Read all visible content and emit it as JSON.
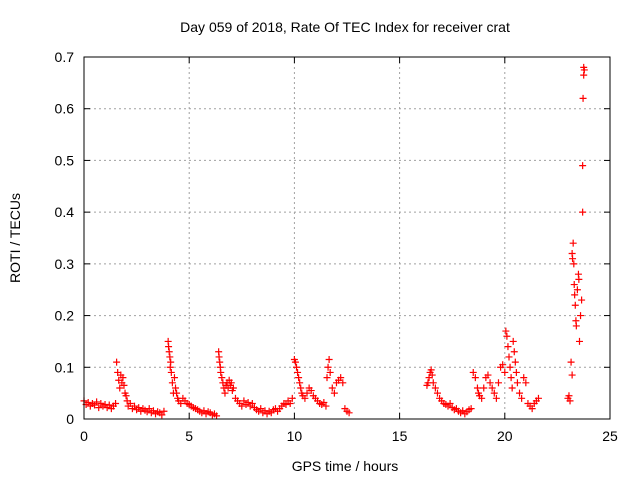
{
  "chart_data": {
    "type": "scatter",
    "title": "Day 059 of 2018, Rate Of TEC Index for receiver crat",
    "xlabel": "GPS time / hours",
    "ylabel": "ROTI / TECUs",
    "xlim": [
      0,
      25
    ],
    "ylim": [
      0,
      0.7
    ],
    "x_ticks": [
      0,
      5,
      10,
      15,
      20,
      25
    ],
    "y_ticks": [
      0,
      0.1,
      0.2,
      0.3,
      0.4,
      0.5,
      0.6,
      0.7
    ],
    "x_tick_labels": [
      "0",
      "5",
      "10",
      "15",
      "20",
      "25"
    ],
    "y_tick_labels": [
      "0",
      "0.1",
      "0.2",
      "0.3",
      "0.4",
      "0.5",
      "0.6",
      "0.7"
    ],
    "grid": true,
    "marker": "+",
    "color": "#ff0000",
    "series": [
      {
        "name": "ROTI",
        "points": [
          [
            0.0,
            0.035
          ],
          [
            0.1,
            0.028
          ],
          [
            0.2,
            0.032
          ],
          [
            0.3,
            0.025
          ],
          [
            0.4,
            0.03
          ],
          [
            0.5,
            0.027
          ],
          [
            0.6,
            0.033
          ],
          [
            0.7,
            0.022
          ],
          [
            0.8,
            0.03
          ],
          [
            0.9,
            0.025
          ],
          [
            1.0,
            0.028
          ],
          [
            1.1,
            0.022
          ],
          [
            1.2,
            0.027
          ],
          [
            1.3,
            0.02
          ],
          [
            1.4,
            0.025
          ],
          [
            1.5,
            0.03
          ],
          [
            1.55,
            0.11
          ],
          [
            1.6,
            0.09
          ],
          [
            1.65,
            0.075
          ],
          [
            1.7,
            0.06
          ],
          [
            1.75,
            0.085
          ],
          [
            1.8,
            0.07
          ],
          [
            1.85,
            0.08
          ],
          [
            1.9,
            0.065
          ],
          [
            1.95,
            0.05
          ],
          [
            2.0,
            0.045
          ],
          [
            2.05,
            0.035
          ],
          [
            2.1,
            0.025
          ],
          [
            2.2,
            0.03
          ],
          [
            2.3,
            0.02
          ],
          [
            2.4,
            0.025
          ],
          [
            2.5,
            0.018
          ],
          [
            2.6,
            0.022
          ],
          [
            2.7,
            0.015
          ],
          [
            2.8,
            0.02
          ],
          [
            2.9,
            0.017
          ],
          [
            3.0,
            0.014
          ],
          [
            3.1,
            0.02
          ],
          [
            3.2,
            0.012
          ],
          [
            3.3,
            0.016
          ],
          [
            3.4,
            0.01
          ],
          [
            3.5,
            0.014
          ],
          [
            3.6,
            0.012
          ],
          [
            3.7,
            0.008
          ],
          [
            3.8,
            0.015
          ],
          [
            4.0,
            0.15
          ],
          [
            4.02,
            0.14
          ],
          [
            4.05,
            0.13
          ],
          [
            4.08,
            0.12
          ],
          [
            4.1,
            0.1
          ],
          [
            4.12,
            0.11
          ],
          [
            4.15,
            0.09
          ],
          [
            4.2,
            0.07
          ],
          [
            4.25,
            0.05
          ],
          [
            4.3,
            0.08
          ],
          [
            4.35,
            0.06
          ],
          [
            4.4,
            0.05
          ],
          [
            4.45,
            0.04
          ],
          [
            4.5,
            0.035
          ],
          [
            4.6,
            0.03
          ],
          [
            4.7,
            0.04
          ],
          [
            4.8,
            0.035
          ],
          [
            4.9,
            0.03
          ],
          [
            5.0,
            0.028
          ],
          [
            5.1,
            0.025
          ],
          [
            5.2,
            0.022
          ],
          [
            5.3,
            0.02
          ],
          [
            5.4,
            0.018
          ],
          [
            5.5,
            0.015
          ],
          [
            5.6,
            0.012
          ],
          [
            5.7,
            0.016
          ],
          [
            5.8,
            0.01
          ],
          [
            5.9,
            0.014
          ],
          [
            6.0,
            0.012
          ],
          [
            6.1,
            0.008
          ],
          [
            6.2,
            0.01
          ],
          [
            6.3,
            0.006
          ],
          [
            6.4,
            0.13
          ],
          [
            6.42,
            0.12
          ],
          [
            6.45,
            0.11
          ],
          [
            6.48,
            0.1
          ],
          [
            6.5,
            0.09
          ],
          [
            6.55,
            0.08
          ],
          [
            6.6,
            0.07
          ],
          [
            6.65,
            0.06
          ],
          [
            6.7,
            0.05
          ],
          [
            6.75,
            0.065
          ],
          [
            6.8,
            0.07
          ],
          [
            6.85,
            0.06
          ],
          [
            6.9,
            0.075
          ],
          [
            6.95,
            0.065
          ],
          [
            7.0,
            0.07
          ],
          [
            7.05,
            0.055
          ],
          [
            7.1,
            0.06
          ],
          [
            7.2,
            0.04
          ],
          [
            7.3,
            0.035
          ],
          [
            7.4,
            0.03
          ],
          [
            7.5,
            0.025
          ],
          [
            7.6,
            0.035
          ],
          [
            7.7,
            0.028
          ],
          [
            7.8,
            0.032
          ],
          [
            7.9,
            0.025
          ],
          [
            8.0,
            0.03
          ],
          [
            8.1,
            0.022
          ],
          [
            8.2,
            0.018
          ],
          [
            8.3,
            0.015
          ],
          [
            8.4,
            0.02
          ],
          [
            8.5,
            0.012
          ],
          [
            8.6,
            0.016
          ],
          [
            8.7,
            0.01
          ],
          [
            8.8,
            0.015
          ],
          [
            8.9,
            0.012
          ],
          [
            9.0,
            0.018
          ],
          [
            9.1,
            0.02
          ],
          [
            9.2,
            0.015
          ],
          [
            9.3,
            0.02
          ],
          [
            9.4,
            0.025
          ],
          [
            9.5,
            0.03
          ],
          [
            9.6,
            0.028
          ],
          [
            9.7,
            0.035
          ],
          [
            9.8,
            0.03
          ],
          [
            9.9,
            0.04
          ],
          [
            10.0,
            0.115
          ],
          [
            10.05,
            0.11
          ],
          [
            10.1,
            0.1
          ],
          [
            10.15,
            0.09
          ],
          [
            10.2,
            0.08
          ],
          [
            10.25,
            0.07
          ],
          [
            10.3,
            0.06
          ],
          [
            10.35,
            0.05
          ],
          [
            10.4,
            0.045
          ],
          [
            10.5,
            0.04
          ],
          [
            10.6,
            0.05
          ],
          [
            10.7,
            0.06
          ],
          [
            10.8,
            0.055
          ],
          [
            10.9,
            0.045
          ],
          [
            11.0,
            0.04
          ],
          [
            11.1,
            0.035
          ],
          [
            11.2,
            0.03
          ],
          [
            11.3,
            0.028
          ],
          [
            11.4,
            0.032
          ],
          [
            11.5,
            0.025
          ],
          [
            11.55,
            0.08
          ],
          [
            11.6,
            0.1
          ],
          [
            11.65,
            0.115
          ],
          [
            11.7,
            0.09
          ],
          [
            11.8,
            0.06
          ],
          [
            11.9,
            0.05
          ],
          [
            12.0,
            0.07
          ],
          [
            12.1,
            0.075
          ],
          [
            12.2,
            0.08
          ],
          [
            12.3,
            0.07
          ],
          [
            12.4,
            0.02
          ],
          [
            12.5,
            0.015
          ],
          [
            12.6,
            0.012
          ],
          [
            16.3,
            0.065
          ],
          [
            16.35,
            0.07
          ],
          [
            16.4,
            0.08
          ],
          [
            16.45,
            0.09
          ],
          [
            16.5,
            0.095
          ],
          [
            16.55,
            0.085
          ],
          [
            16.6,
            0.07
          ],
          [
            16.7,
            0.06
          ],
          [
            16.8,
            0.05
          ],
          [
            16.9,
            0.04
          ],
          [
            17.0,
            0.035
          ],
          [
            17.1,
            0.03
          ],
          [
            17.2,
            0.028
          ],
          [
            17.3,
            0.025
          ],
          [
            17.4,
            0.03
          ],
          [
            17.5,
            0.022
          ],
          [
            17.6,
            0.018
          ],
          [
            17.7,
            0.02
          ],
          [
            17.8,
            0.015
          ],
          [
            17.9,
            0.012
          ],
          [
            18.0,
            0.016
          ],
          [
            18.1,
            0.01
          ],
          [
            18.2,
            0.014
          ],
          [
            18.3,
            0.018
          ],
          [
            18.4,
            0.02
          ],
          [
            18.5,
            0.09
          ],
          [
            18.6,
            0.08
          ],
          [
            18.7,
            0.06
          ],
          [
            18.75,
            0.05
          ],
          [
            18.8,
            0.045
          ],
          [
            18.9,
            0.04
          ],
          [
            19.0,
            0.06
          ],
          [
            19.1,
            0.08
          ],
          [
            19.2,
            0.085
          ],
          [
            19.3,
            0.07
          ],
          [
            19.4,
            0.06
          ],
          [
            19.5,
            0.05
          ],
          [
            19.6,
            0.04
          ],
          [
            19.7,
            0.07
          ],
          [
            19.8,
            0.1
          ],
          [
            19.9,
            0.105
          ],
          [
            20.0,
            0.09
          ],
          [
            20.05,
            0.17
          ],
          [
            20.1,
            0.16
          ],
          [
            20.15,
            0.14
          ],
          [
            20.2,
            0.12
          ],
          [
            20.25,
            0.1
          ],
          [
            20.3,
            0.08
          ],
          [
            20.35,
            0.06
          ],
          [
            20.4,
            0.15
          ],
          [
            20.45,
            0.13
          ],
          [
            20.5,
            0.11
          ],
          [
            20.55,
            0.09
          ],
          [
            20.6,
            0.07
          ],
          [
            20.7,
            0.05
          ],
          [
            20.8,
            0.04
          ],
          [
            20.9,
            0.08
          ],
          [
            21.0,
            0.07
          ],
          [
            21.1,
            0.03
          ],
          [
            21.2,
            0.025
          ],
          [
            21.3,
            0.02
          ],
          [
            21.4,
            0.03
          ],
          [
            21.5,
            0.035
          ],
          [
            21.6,
            0.04
          ],
          [
            23.0,
            0.04
          ],
          [
            23.05,
            0.045
          ],
          [
            23.1,
            0.035
          ],
          [
            23.15,
            0.11
          ],
          [
            23.2,
            0.085
          ],
          [
            23.2,
            0.32
          ],
          [
            23.22,
            0.31
          ],
          [
            23.25,
            0.34
          ],
          [
            23.28,
            0.3
          ],
          [
            23.3,
            0.26
          ],
          [
            23.32,
            0.24
          ],
          [
            23.35,
            0.22
          ],
          [
            23.38,
            0.19
          ],
          [
            23.4,
            0.18
          ],
          [
            23.45,
            0.25
          ],
          [
            23.5,
            0.28
          ],
          [
            23.52,
            0.27
          ],
          [
            23.55,
            0.15
          ],
          [
            23.6,
            0.2
          ],
          [
            23.65,
            0.23
          ],
          [
            23.7,
            0.4
          ],
          [
            23.7,
            0.49
          ],
          [
            23.72,
            0.62
          ],
          [
            23.75,
            0.665
          ],
          [
            23.75,
            0.68
          ],
          [
            23.78,
            0.675
          ]
        ]
      }
    ]
  }
}
